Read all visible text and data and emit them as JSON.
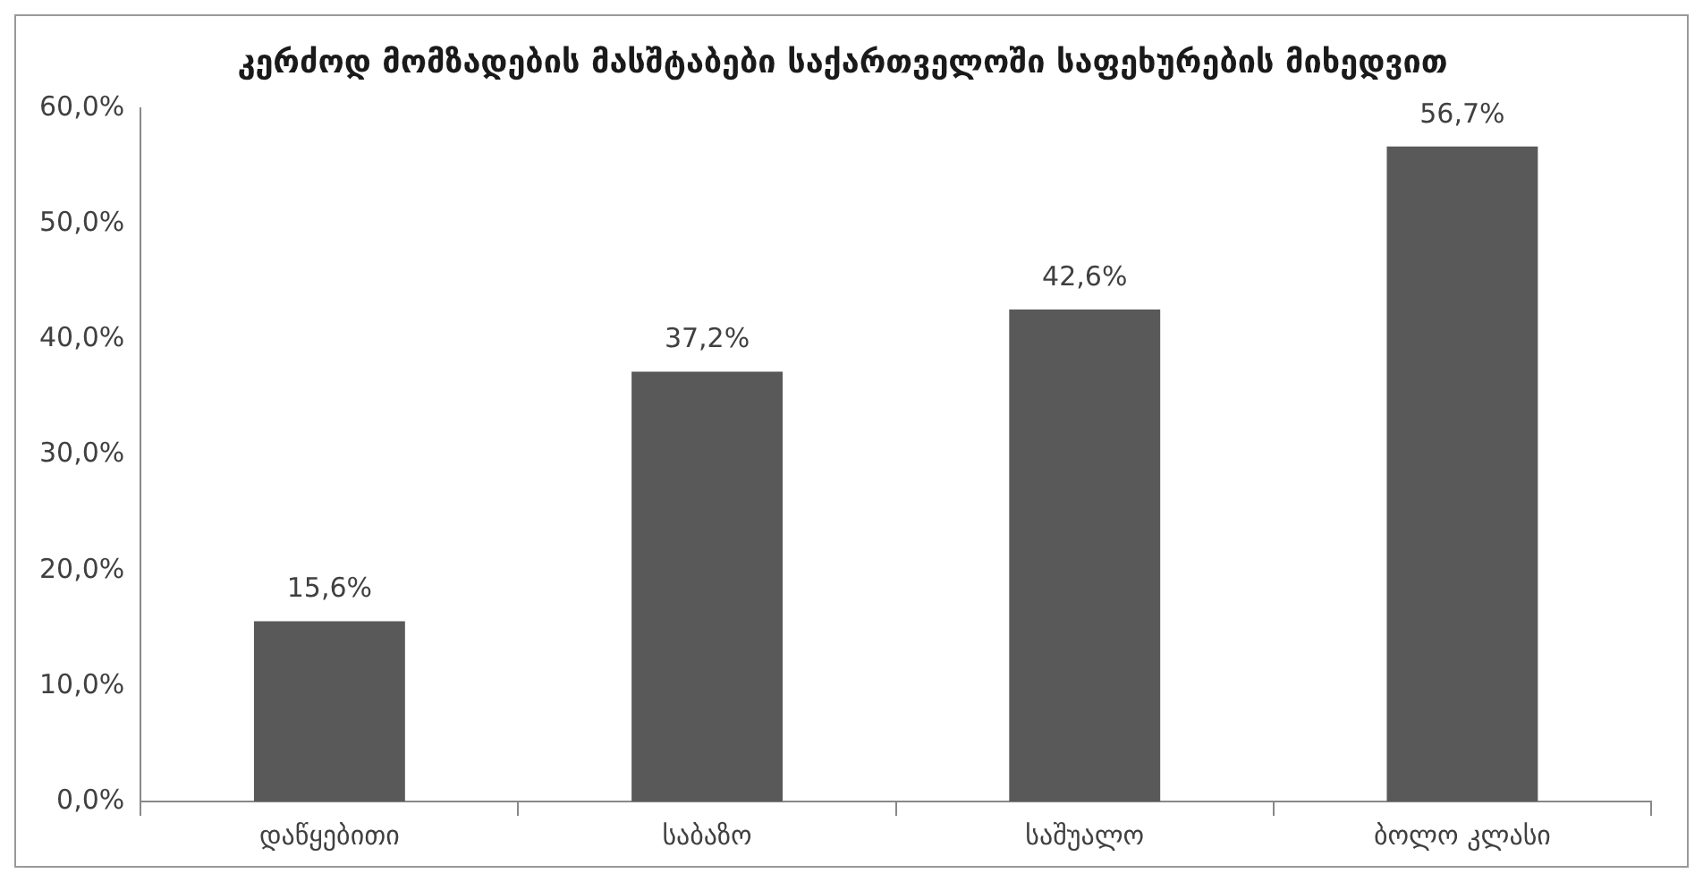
{
  "chart_data": {
    "type": "bar",
    "title": "კერძოდ მომზადების მასშტაბები საქართველოში საფეხურების მიხედვით",
    "categories": [
      "დაწყებითი",
      "საბაზო",
      "საშუალო",
      "ბოლო კლასი"
    ],
    "values": [
      15.6,
      37.2,
      42.6,
      56.7
    ],
    "value_labels": [
      "15,6%",
      "37,2%",
      "42,6%",
      "56,7%"
    ],
    "color": "#595959",
    "ylim": [
      0,
      60
    ],
    "yticks": [
      {
        "value": 0,
        "label": "0,0%"
      },
      {
        "value": 10,
        "label": "10,0%"
      },
      {
        "value": 20,
        "label": "20,0%"
      },
      {
        "value": 30,
        "label": "30,0%"
      },
      {
        "value": 40,
        "label": "40,0%"
      },
      {
        "value": 50,
        "label": "50,0%"
      },
      {
        "value": 60,
        "label": "60,0%"
      }
    ],
    "grid": false,
    "legend": false
  }
}
